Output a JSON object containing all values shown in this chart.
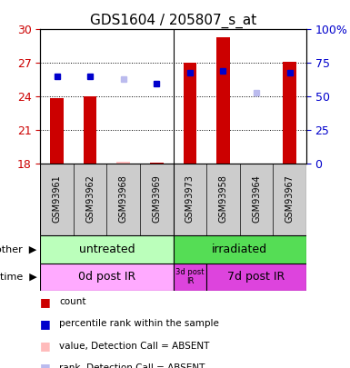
{
  "title": "GDS1604 / 205807_s_at",
  "samples": [
    "GSM93961",
    "GSM93962",
    "GSM93968",
    "GSM93969",
    "GSM93973",
    "GSM93958",
    "GSM93964",
    "GSM93967"
  ],
  "bar_values": [
    23.9,
    24.0,
    18.2,
    18.1,
    27.0,
    29.3,
    18.0,
    27.1
  ],
  "bar_colors": [
    "#cc0000",
    "#cc0000",
    "#ffbbbb",
    "#cc0000",
    "#cc0000",
    "#cc0000",
    "#ffbbbb",
    "#cc0000"
  ],
  "rank_values": [
    65,
    65,
    63,
    60,
    68,
    69,
    53,
    68
  ],
  "rank_colors": [
    "#0000cc",
    "#0000cc",
    "#bbbbee",
    "#0000cc",
    "#0000cc",
    "#0000cc",
    "#bbbbee",
    "#0000cc"
  ],
  "ylim": [
    18,
    30
  ],
  "yticks": [
    18,
    21,
    24,
    27,
    30
  ],
  "y2lim": [
    0,
    100
  ],
  "y2ticks": [
    0,
    25,
    50,
    75,
    100
  ],
  "y2ticklabels": [
    "0",
    "25",
    "50",
    "75",
    "100%"
  ],
  "group_other": [
    [
      "untreated",
      0,
      4
    ],
    [
      "irradiated",
      4,
      8
    ]
  ],
  "group_time": [
    [
      "0d post IR",
      0,
      4
    ],
    [
      "3d post\nIR",
      4,
      5
    ],
    [
      "7d post IR",
      5,
      8
    ]
  ],
  "group_other_colors": [
    "#bbffbb",
    "#55dd55"
  ],
  "group_time_colors": [
    "#ffaaff",
    "#dd44dd",
    "#dd44dd"
  ],
  "title_fontsize": 11,
  "left_color": "#cc0000",
  "right_color": "#0000cc",
  "sample_bg": "#cccccc",
  "legend_items": [
    [
      "#cc0000",
      "count"
    ],
    [
      "#0000cc",
      "percentile rank within the sample"
    ],
    [
      "#ffbbbb",
      "value, Detection Call = ABSENT"
    ],
    [
      "#bbbbee",
      "rank, Detection Call = ABSENT"
    ]
  ]
}
